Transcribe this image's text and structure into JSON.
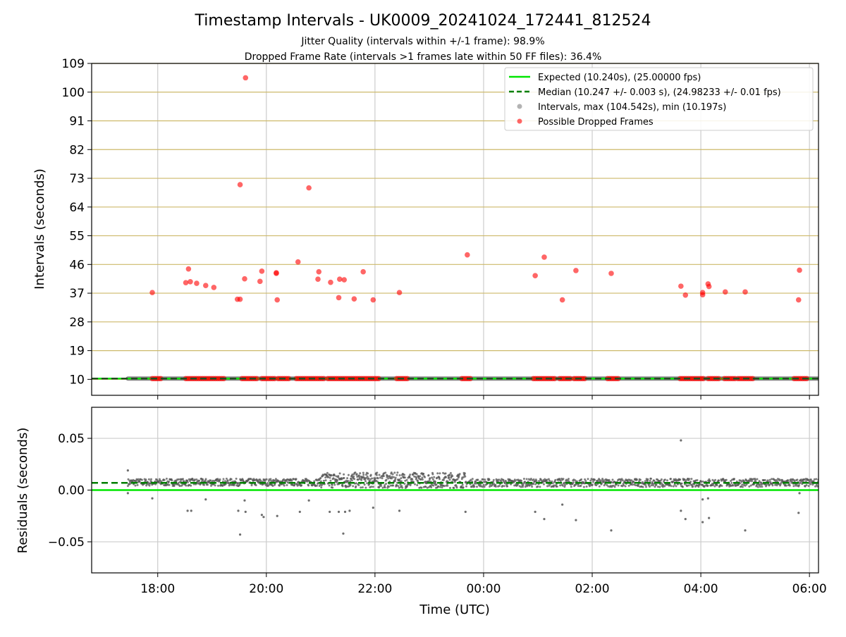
{
  "figure": {
    "title": "Timestamp Intervals - UK0009_20241024_172441_812524",
    "subtitle_1": "Jitter Quality (intervals within +/-1 frame): 98.9%",
    "subtitle_2": "Dropped Frame Rate (intervals >1 frames late within 50 FF files): 36.4%",
    "colors": {
      "expected": "#00e600",
      "median": "#007f00",
      "intervals": "#808080",
      "dropped": "#ff0000",
      "hgrid": "#cdb96a",
      "grid": "#cccccc",
      "residual_points": "#555555"
    }
  },
  "chart_data": [
    {
      "type": "scatter",
      "ylabel": "Intervals (seconds)",
      "xlim": [
        "16:47",
        "06:10"
      ],
      "ylim": [
        5,
        109
      ],
      "yticks": [
        "10",
        "19",
        "28",
        "37",
        "46",
        "55",
        "64",
        "73",
        "82",
        "91",
        "100",
        "109"
      ],
      "hgrid_color": "#cdb96a",
      "legend_position": "top-right",
      "legend": [
        {
          "label": "Expected (10.240s), (25.00000 fps)",
          "style": "line",
          "color": "#00e600"
        },
        {
          "label": "Median (10.247 +/- 0.003 s), (24.98233 +/- 0.01 fps)",
          "style": "dashed",
          "color": "#007f00"
        },
        {
          "label": "Intervals, max (104.542s), min (10.197s)",
          "style": "dot",
          "color": "#808080"
        },
        {
          "label": "Possible Dropped Frames",
          "style": "dot",
          "color": "#ff0000"
        }
      ],
      "expected": 10.24,
      "median": 10.247,
      "intervals_span": [
        "17:27",
        "06:10"
      ],
      "interval_baseline": 10.24,
      "dropped_frames_near_baseline": [
        [
          "17:54",
          "18:05"
        ],
        [
          "18:31",
          "19:15"
        ],
        [
          "19:33",
          "19:50"
        ],
        [
          "19:55",
          "20:10"
        ],
        [
          "20:13",
          "20:25"
        ],
        [
          "20:33",
          "21:05"
        ],
        [
          "21:08",
          "22:06"
        ],
        [
          "22:24",
          "22:37"
        ],
        [
          "23:36",
          "23:46"
        ],
        [
          "00:55",
          "01:20"
        ],
        [
          "01:24",
          "01:38"
        ],
        [
          "01:40",
          "01:54"
        ],
        [
          "02:17",
          "02:30"
        ],
        [
          "03:37",
          "04:05"
        ],
        [
          "04:08",
          "04:22"
        ],
        [
          "04:26",
          "04:40"
        ],
        [
          "04:41",
          "04:59"
        ],
        [
          "05:43",
          "05:59"
        ]
      ],
      "dropped_frames": [
        {
          "x": "17:54",
          "y": 37.2
        },
        {
          "x": "18:31",
          "y": 40.3
        },
        {
          "x": "18:34",
          "y": 44.6
        },
        {
          "x": "18:36",
          "y": 40.6
        },
        {
          "x": "18:43",
          "y": 40.1
        },
        {
          "x": "18:53",
          "y": 39.4
        },
        {
          "x": "19:02",
          "y": 38.8
        },
        {
          "x": "19:28",
          "y": 35.1
        },
        {
          "x": "19:31",
          "y": 35.1
        },
        {
          "x": "19:31",
          "y": 71.0
        },
        {
          "x": "19:36",
          "y": 41.5
        },
        {
          "x": "19:37",
          "y": 104.5
        },
        {
          "x": "19:53",
          "y": 40.7
        },
        {
          "x": "19:55",
          "y": 43.9
        },
        {
          "x": "20:11",
          "y": 43.4
        },
        {
          "x": "20:11",
          "y": 43.2
        },
        {
          "x": "20:12",
          "y": 34.9
        },
        {
          "x": "20:35",
          "y": 46.8
        },
        {
          "x": "20:47",
          "y": 70.0
        },
        {
          "x": "20:57",
          "y": 41.4
        },
        {
          "x": "20:58",
          "y": 43.7
        },
        {
          "x": "21:11",
          "y": 40.4
        },
        {
          "x": "21:20",
          "y": 35.6
        },
        {
          "x": "21:21",
          "y": 41.4
        },
        {
          "x": "21:26",
          "y": 41.2
        },
        {
          "x": "21:37",
          "y": 35.2
        },
        {
          "x": "21:47",
          "y": 43.7
        },
        {
          "x": "21:58",
          "y": 34.9
        },
        {
          "x": "22:27",
          "y": 37.2
        },
        {
          "x": "23:42",
          "y": 49.0
        },
        {
          "x": "00:57",
          "y": 42.5
        },
        {
          "x": "01:07",
          "y": 48.3
        },
        {
          "x": "01:27",
          "y": 34.9
        },
        {
          "x": "01:42",
          "y": 44.1
        },
        {
          "x": "02:21",
          "y": 43.2
        },
        {
          "x": "03:38",
          "y": 39.2
        },
        {
          "x": "03:43",
          "y": 36.4
        },
        {
          "x": "04:02",
          "y": 37.2
        },
        {
          "x": "04:02",
          "y": 36.5
        },
        {
          "x": "04:08",
          "y": 39.9
        },
        {
          "x": "04:09",
          "y": 39.1
        },
        {
          "x": "04:27",
          "y": 37.4
        },
        {
          "x": "04:49",
          "y": 37.4
        },
        {
          "x": "05:48",
          "y": 34.9
        },
        {
          "x": "05:49",
          "y": 44.2
        }
      ]
    },
    {
      "type": "scatter",
      "xlabel": "Time (UTC)",
      "ylabel": "Residuals (seconds)",
      "xlim": [
        "16:47",
        "06:10"
      ],
      "ylim": [
        -0.08,
        0.08
      ],
      "yticks": [
        "−0.05",
        "0.00",
        "0.05"
      ],
      "xticks": [
        "18:00",
        "20:00",
        "22:00",
        "00:00",
        "02:00",
        "04:00",
        "06:00"
      ],
      "expected_residual": 0.0,
      "median_residual": 0.007,
      "residual_bands": [
        {
          "from": "17:27",
          "to": "21:00",
          "low": 0.004,
          "high": 0.011
        },
        {
          "from": "21:00",
          "to": "23:40",
          "low": 0.002,
          "high": 0.017
        },
        {
          "from": "23:40",
          "to": "06:10",
          "low": 0.003,
          "high": 0.011
        }
      ],
      "outliers": [
        {
          "x": "17:27",
          "y": 0.019
        },
        {
          "x": "17:27",
          "y": -0.003
        },
        {
          "x": "17:54",
          "y": -0.008
        },
        {
          "x": "18:33",
          "y": -0.02
        },
        {
          "x": "18:37",
          "y": -0.02
        },
        {
          "x": "18:53",
          "y": -0.009
        },
        {
          "x": "19:29",
          "y": -0.02
        },
        {
          "x": "19:31",
          "y": -0.043
        },
        {
          "x": "19:36",
          "y": -0.01
        },
        {
          "x": "19:37",
          "y": -0.021
        },
        {
          "x": "19:55",
          "y": -0.024
        },
        {
          "x": "19:57",
          "y": -0.026
        },
        {
          "x": "20:12",
          "y": -0.025
        },
        {
          "x": "20:37",
          "y": -0.021
        },
        {
          "x": "20:47",
          "y": -0.01
        },
        {
          "x": "21:10",
          "y": -0.021
        },
        {
          "x": "21:20",
          "y": -0.021
        },
        {
          "x": "21:25",
          "y": -0.042
        },
        {
          "x": "21:27",
          "y": -0.021
        },
        {
          "x": "21:32",
          "y": -0.02
        },
        {
          "x": "21:58",
          "y": -0.017
        },
        {
          "x": "22:27",
          "y": -0.02
        },
        {
          "x": "23:40",
          "y": -0.021
        },
        {
          "x": "00:57",
          "y": -0.021
        },
        {
          "x": "01:07",
          "y": -0.028
        },
        {
          "x": "01:27",
          "y": -0.014
        },
        {
          "x": "01:42",
          "y": -0.029
        },
        {
          "x": "02:21",
          "y": -0.039
        },
        {
          "x": "03:38",
          "y": 0.048
        },
        {
          "x": "03:38",
          "y": -0.02
        },
        {
          "x": "03:43",
          "y": -0.028
        },
        {
          "x": "04:02",
          "y": -0.031
        },
        {
          "x": "04:02",
          "y": -0.009
        },
        {
          "x": "04:08",
          "y": -0.008
        },
        {
          "x": "04:09",
          "y": -0.027
        },
        {
          "x": "04:49",
          "y": -0.039
        },
        {
          "x": "05:48",
          "y": -0.022
        },
        {
          "x": "05:49",
          "y": -0.003
        }
      ]
    }
  ]
}
